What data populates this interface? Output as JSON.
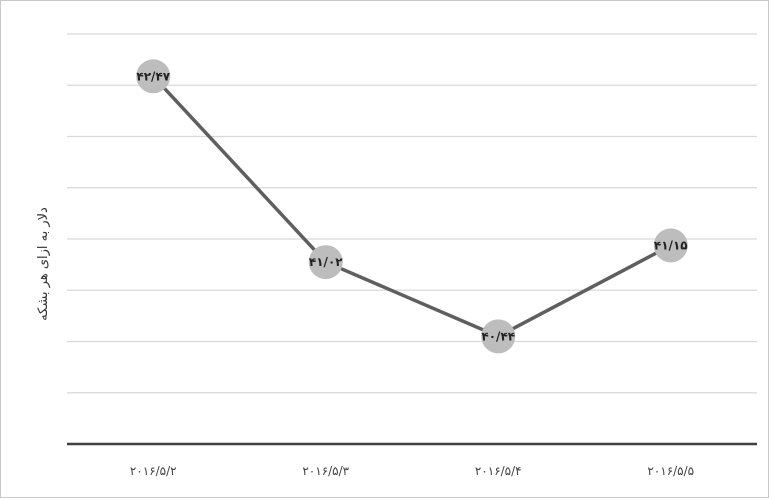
{
  "chart_data": {
    "type": "line",
    "title": "",
    "xlabel": "",
    "ylabel": "دلار به ازای هر بشکه",
    "categories": [
      "۲۰۱۶/۵/۲",
      "۲۰۱۶/۵/۳",
      "۲۰۱۶/۵/۴",
      "۲۰۱۶/۵/۵"
    ],
    "series": [
      {
        "values": [
          42.47,
          41.02,
          40.44,
          41.15
        ],
        "data_labels": [
          "۴۲/۴۷",
          "۴۱/۰۲",
          "۴۰/۴۴",
          "۴۱/۱۵"
        ]
      }
    ],
    "ylim": [
      39.6,
      42.8
    ],
    "grid": true,
    "legend": "none",
    "y_tick_labels_visible": false,
    "colors": {
      "line": "#5f5f5f",
      "marker": "#bdbdbd",
      "grid": "#d9d9d9",
      "axis": "#404040"
    }
  }
}
